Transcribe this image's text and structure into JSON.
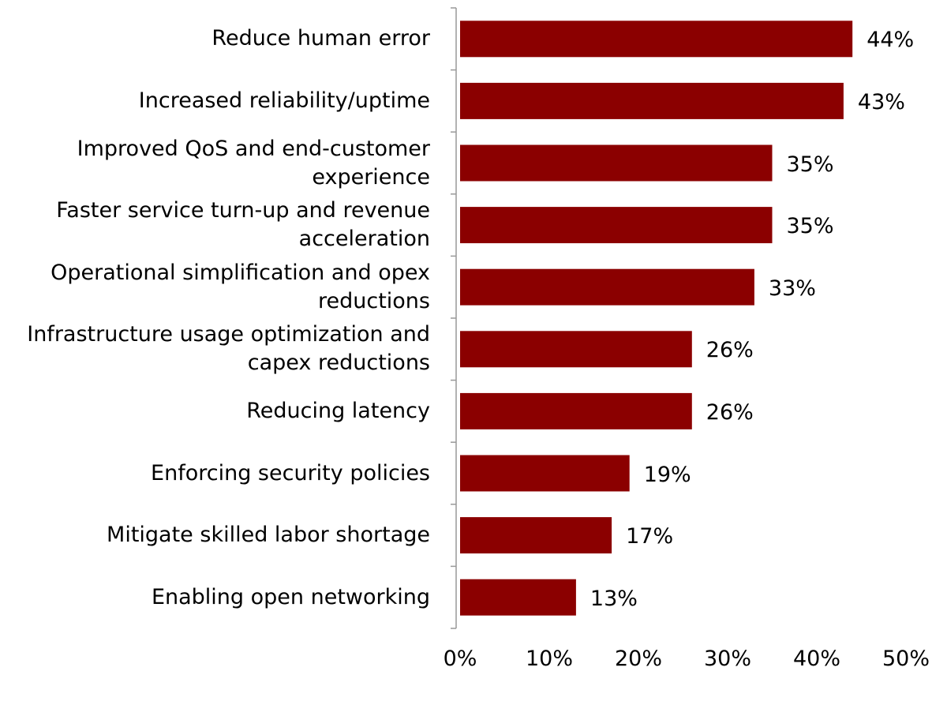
{
  "chart_data": {
    "type": "barh",
    "categories": [
      "Reduce human error",
      "Increased reliability/uptime",
      "Improved QoS and end-customer experience",
      "Faster service turn-up and revenue acceleration",
      "Operational simplification and opex reductions",
      "Infrastructure usage optimization and capex reductions",
      "Reducing latency",
      "Enforcing security policies",
      "Mitigate skilled labor shortage",
      "Enabling open networking"
    ],
    "values": [
      44,
      43,
      35,
      35,
      33,
      26,
      26,
      19,
      17,
      13
    ],
    "value_labels": [
      "44%",
      "43%",
      "35%",
      "35%",
      "33%",
      "26%",
      "26%",
      "19%",
      "17%",
      "13%"
    ],
    "color": "#8b0000",
    "xlim": [
      0,
      50
    ],
    "xticks": [
      {
        "value": 0,
        "label": "0%"
      },
      {
        "value": 10,
        "label": "10%"
      },
      {
        "value": 20,
        "label": "20%"
      },
      {
        "value": 30,
        "label": "30%"
      },
      {
        "value": 40,
        "label": "40%"
      },
      {
        "value": 50,
        "label": "50%"
      }
    ],
    "grid": false
  }
}
